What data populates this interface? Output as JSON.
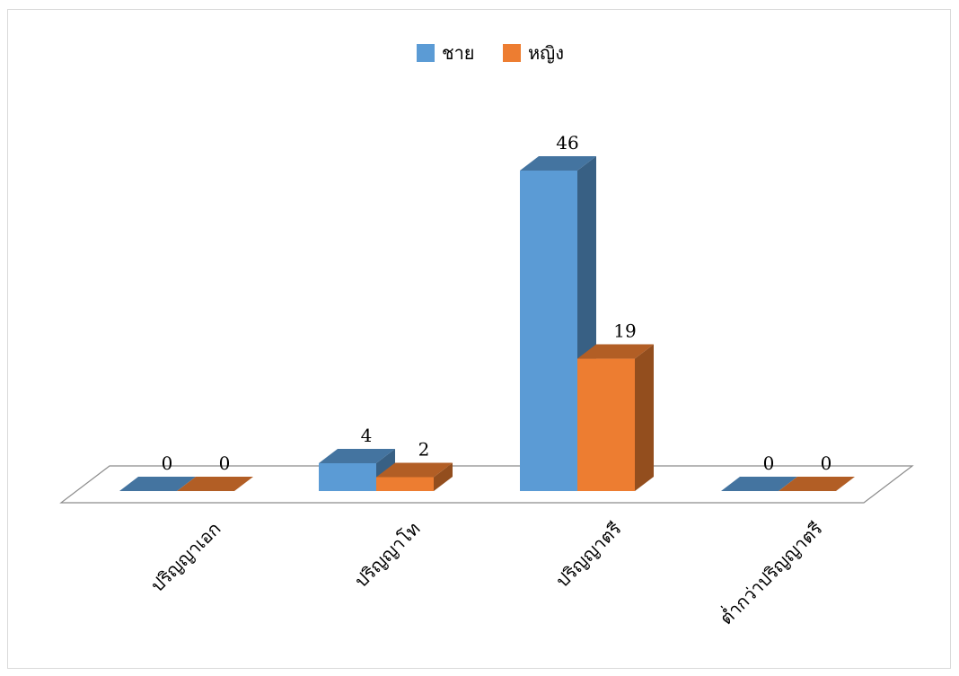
{
  "chart_data": {
    "type": "bar",
    "categories": [
      "ปริญญาเอก",
      "ปริญญาโท",
      "ปริญญาตรี",
      "ต่ำกว่าปริญญาตรี"
    ],
    "series": [
      {
        "name": "ชาย",
        "values": [
          0,
          4,
          46,
          0
        ],
        "color": "#5b9bd5"
      },
      {
        "name": "หญิง",
        "values": [
          0,
          2,
          19,
          0
        ],
        "color": "#ed7d31"
      }
    ],
    "ylim": [
      0,
      46
    ],
    "legend": "top-center",
    "grid": false,
    "three_d": true,
    "data_labels": true
  }
}
